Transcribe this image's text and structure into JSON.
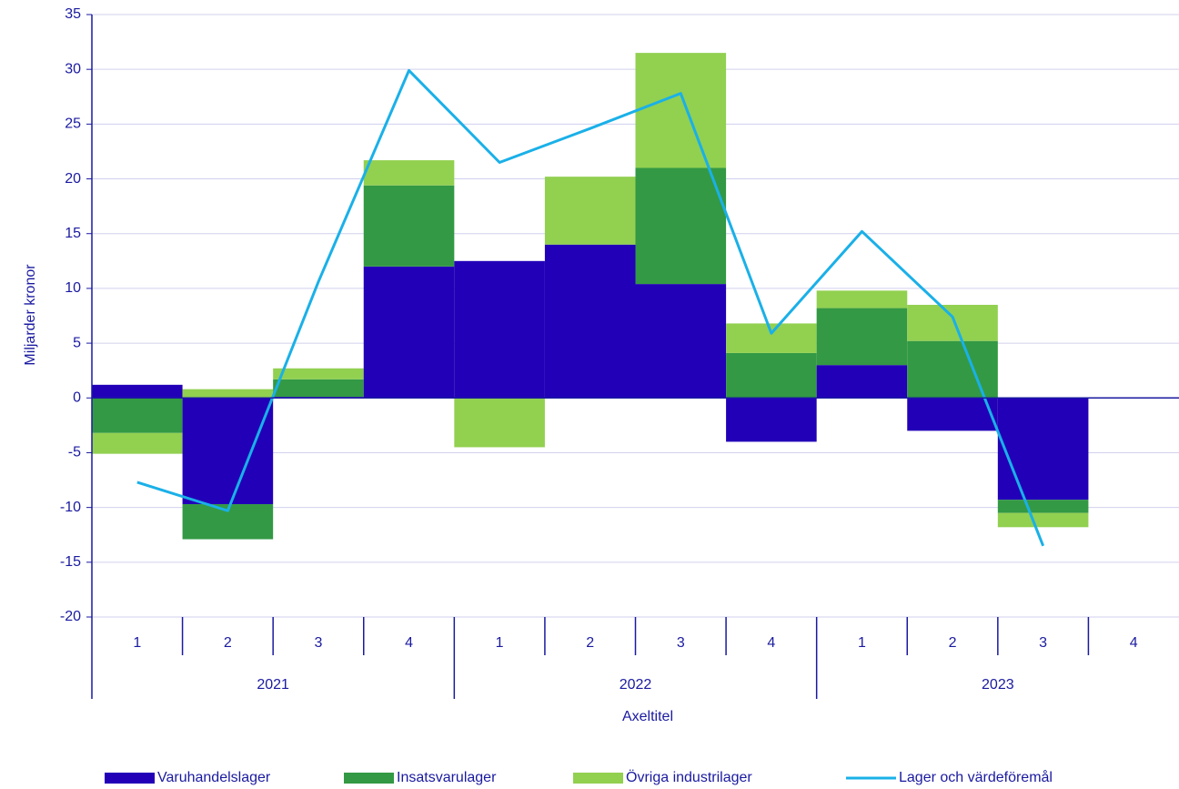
{
  "chart_data": {
    "type": "bar",
    "stacked": true,
    "categories": [
      "1",
      "2",
      "3",
      "4",
      "1",
      "2",
      "3",
      "4",
      "1",
      "2",
      "3",
      "4"
    ],
    "year_groups": [
      "2021",
      "2022",
      "2023"
    ],
    "xlabel": "Axeltitel",
    "ylabel": "Miljarder kronor",
    "ylim": [
      -20,
      35
    ],
    "yticks": [
      -20,
      -15,
      -10,
      -5,
      0,
      5,
      10,
      15,
      20,
      25,
      30,
      35
    ],
    "grid": true,
    "legend": "bottom",
    "series": [
      {
        "name": "Varuhandelslager",
        "color": "#2200b8",
        "type": "bar",
        "values": [
          1.2,
          -9.7,
          0.1,
          12.0,
          12.5,
          14.0,
          10.4,
          -4.0,
          3.0,
          -3.0,
          -9.3,
          null
        ]
      },
      {
        "name": "Insatsvarulager",
        "color": "#339944",
        "type": "bar",
        "values": [
          -3.2,
          -3.2,
          1.6,
          7.4,
          0,
          0,
          10.6,
          4.1,
          5.2,
          5.2,
          -1.2,
          null
        ]
      },
      {
        "name": "Övriga industrilager",
        "color": "#92d050",
        "type": "bar",
        "values": [
          -1.9,
          0.8,
          1.0,
          2.3,
          -4.5,
          6.2,
          10.5,
          2.7,
          1.6,
          3.3,
          -1.3,
          null
        ]
      },
      {
        "name": "Lager och värdeföremål",
        "color": "#1ab0e8",
        "type": "line",
        "values": [
          -7.7,
          -10.3,
          10.6,
          29.9,
          21.5,
          24.6,
          27.8,
          5.9,
          15.2,
          7.4,
          -13.5,
          null
        ]
      }
    ]
  }
}
